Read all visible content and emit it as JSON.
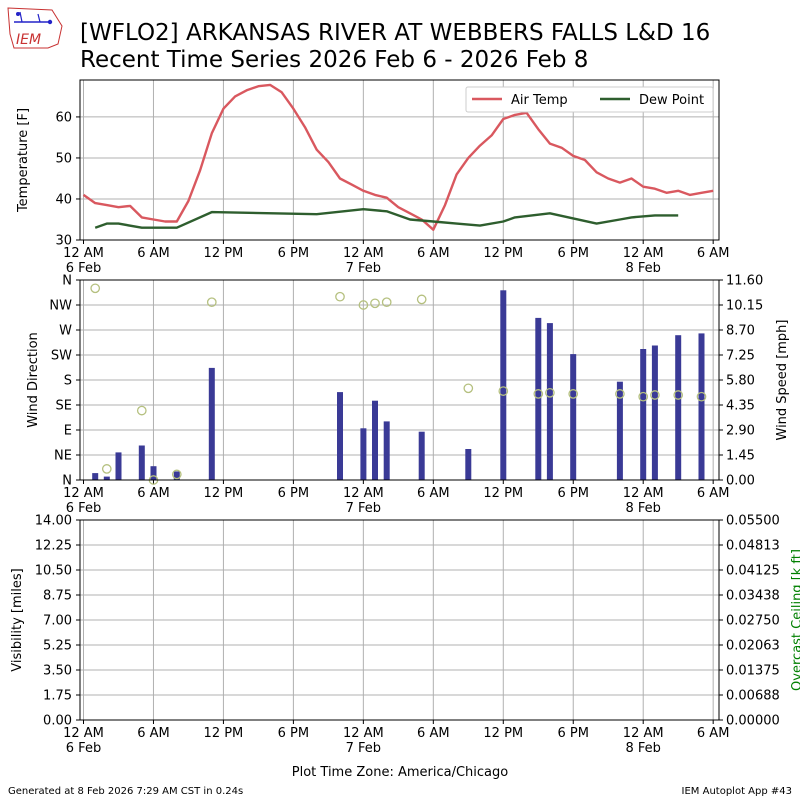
{
  "header": {
    "logo_text": "IEM",
    "title_line1": "[WFLO2] ARKANSAS RIVER  AT WEBBERS FALLS L&D 16",
    "title_line2": "Recent Time Series 2026 Feb 6 - 2026 Feb 8"
  },
  "footer": {
    "generated": "Generated at 8 Feb 2026 7:29 AM CST in 0.24s",
    "app": "IEM Autoplot App #43",
    "xlabel": "Plot Time Zone: America/Chicago"
  },
  "colors": {
    "air_temp": "#d9585f",
    "dew_point": "#2e5e2e",
    "wind_speed": "#3a3a96",
    "wind_dir": "#b5c07f",
    "ceiling_label": "#008000"
  },
  "chart_data": [
    {
      "type": "line",
      "ylabel": "Temperature [F]",
      "ylim": [
        30,
        69
      ],
      "yticks": [
        30,
        40,
        50,
        60
      ],
      "xlim_hours": [
        -0.3,
        54.5
      ],
      "legend_position": "top-right",
      "grid": true,
      "series": [
        {
          "name": "Air Temp",
          "x": [
            0,
            1,
            2,
            3,
            4,
            5,
            6,
            7,
            8,
            9,
            10,
            11,
            12,
            13,
            14,
            15,
            16,
            17,
            18,
            19,
            20,
            21,
            22,
            23,
            24,
            25,
            26,
            27,
            28,
            29,
            30,
            31,
            32,
            33,
            34,
            35,
            36,
            37,
            38,
            39,
            40,
            41,
            42,
            43,
            44,
            45,
            46,
            47,
            48,
            49,
            50,
            51,
            52,
            53,
            54
          ],
          "values": [
            41,
            39,
            38.5,
            38,
            38.3,
            35.5,
            35,
            34.5,
            34.5,
            39.5,
            47,
            56,
            62,
            65,
            66.5,
            67.5,
            67.8,
            66,
            62,
            57.5,
            52,
            49,
            45,
            43.5,
            42,
            41,
            40.3,
            38,
            36.5,
            35,
            32.5,
            38.5,
            46,
            50,
            53,
            55.5,
            59.5,
            60.5,
            61,
            57,
            53.5,
            52.5,
            50.5,
            49.5,
            46.5,
            45,
            44,
            45,
            43,
            42.5,
            41.5,
            42,
            41,
            41.5,
            42
          ]
        },
        {
          "name": "Dew Point",
          "x": [
            1,
            2,
            3,
            5,
            8,
            11,
            20,
            24,
            26,
            28,
            30,
            32,
            34,
            36,
            37,
            40,
            44,
            46,
            47,
            49,
            51
          ],
          "values": [
            33,
            34,
            34,
            33,
            33,
            36.8,
            36.3,
            37.5,
            37,
            35,
            34.5,
            34,
            33.5,
            34.5,
            35.5,
            36.5,
            34,
            35,
            35.5,
            36,
            36
          ]
        }
      ],
      "xticks": [
        "12 AM\n6 Feb",
        "6 AM",
        "12 PM",
        "6 PM",
        "12 AM\n7 Feb",
        "6 AM",
        "12 PM",
        "6 PM",
        "12 AM\n8 Feb",
        "6 AM"
      ]
    },
    {
      "type": "bar",
      "ylabel_left": "Wind Direction",
      "ylabel_right": "Wind Speed [mph]",
      "ylim_speed": [
        0,
        11.6
      ],
      "yticks_dir": [
        "N",
        "NE",
        "E",
        "SE",
        "S",
        "SW",
        "W",
        "NW",
        "N"
      ],
      "yticks_speed": [
        "0.00",
        "1.45",
        "2.90",
        "4.35",
        "5.80",
        "7.25",
        "8.70",
        "10.15",
        "11.60"
      ],
      "grid": true,
      "series": [
        {
          "name": "Wind Speed",
          "x": [
            1,
            2,
            3,
            5,
            6,
            8,
            11,
            22,
            24,
            25,
            26,
            29,
            33,
            36,
            39,
            40,
            42,
            46,
            48,
            49,
            51,
            53
          ],
          "values": [
            0.4,
            0.2,
            1.6,
            2.0,
            0.8,
            0.5,
            6.5,
            5.1,
            3.0,
            4.6,
            3.4,
            2.8,
            1.8,
            11.0,
            9.4,
            9.1,
            7.3,
            5.7,
            7.6,
            7.8,
            8.4,
            8.5
          ]
        },
        {
          "name": "Wind Direction",
          "x": [
            1,
            2,
            5,
            6,
            8,
            11,
            22,
            24,
            25,
            26,
            29,
            33,
            36,
            39,
            40,
            42,
            46,
            48,
            49,
            51,
            53
          ],
          "values": [
            345,
            20,
            125,
            0,
            10,
            320,
            330,
            315,
            318,
            320,
            325,
            165,
            160,
            155,
            157,
            155,
            155,
            150,
            153,
            153,
            150
          ]
        }
      ],
      "xticks": [
        "12 AM\n6 Feb",
        "6 AM",
        "12 PM",
        "6 PM",
        "12 AM\n7 Feb",
        "6 AM",
        "12 PM",
        "6 PM",
        "12 AM\n8 Feb",
        "6 AM"
      ]
    },
    {
      "type": "line",
      "ylabel_left": "Visibility [miles]",
      "ylabel_right": "Overcast Ceiling [k ft]",
      "ylim": [
        0,
        14
      ],
      "yticks_left": [
        "0.00",
        "1.75",
        "3.50",
        "5.25",
        "7.00",
        "8.75",
        "10.50",
        "12.25",
        "14.00"
      ],
      "yticks_right": [
        "0.00000",
        "0.00688",
        "0.01375",
        "0.02063",
        "0.02750",
        "0.03438",
        "0.04125",
        "0.04813",
        "0.05500"
      ],
      "grid": true,
      "series": [],
      "xticks": [
        "12 AM\n6 Feb",
        "6 AM",
        "12 PM",
        "6 PM",
        "12 AM\n7 Feb",
        "6 AM",
        "12 PM",
        "6 PM",
        "12 AM\n8 Feb",
        "6 AM"
      ]
    }
  ]
}
